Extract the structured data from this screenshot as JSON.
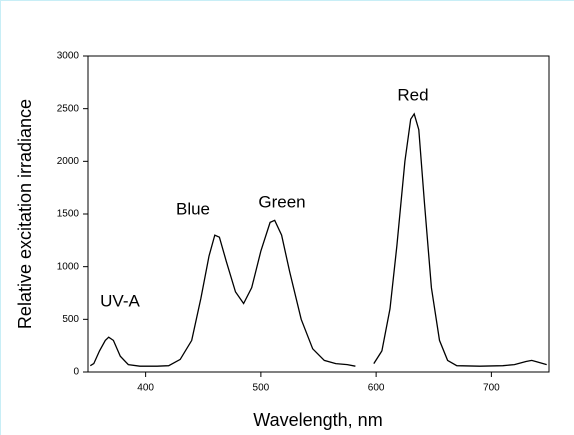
{
  "chart_data": {
    "type": "line",
    "xlabel": "Wavelength, nm",
    "ylabel": "Relative excitation irradiance",
    "annotations": [
      "UV-A",
      "Blue",
      "Green",
      "Red"
    ],
    "x": [
      352,
      355,
      360,
      365,
      368,
      372,
      378,
      385,
      395,
      410,
      420,
      430,
      440,
      448,
      455,
      460,
      464,
      470,
      478,
      485,
      492,
      500,
      508,
      512,
      518,
      525,
      535,
      545,
      555,
      565,
      575,
      582,
      590,
      598,
      605,
      612,
      618,
      625,
      630,
      633,
      637,
      642,
      648,
      655,
      662,
      670,
      690,
      710,
      720,
      730,
      735,
      740,
      748
    ],
    "values": [
      60,
      80,
      200,
      300,
      330,
      300,
      150,
      70,
      55,
      55,
      60,
      120,
      300,
      700,
      1100,
      1300,
      1280,
      1050,
      760,
      650,
      800,
      1150,
      1420,
      1440,
      1300,
      950,
      500,
      220,
      110,
      80,
      70,
      55,
      null,
      80,
      200,
      600,
      1200,
      2000,
      2400,
      2450,
      2300,
      1600,
      800,
      300,
      110,
      60,
      55,
      60,
      70,
      100,
      110,
      95,
      70
    ],
    "color": "#000000",
    "xlim": [
      350,
      750
    ],
    "xticks": [
      400,
      500,
      600,
      700
    ],
    "ylim": [
      0,
      3000
    ],
    "yticks": [
      0,
      500,
      1000,
      1500,
      2000,
      2500,
      3000
    ]
  }
}
